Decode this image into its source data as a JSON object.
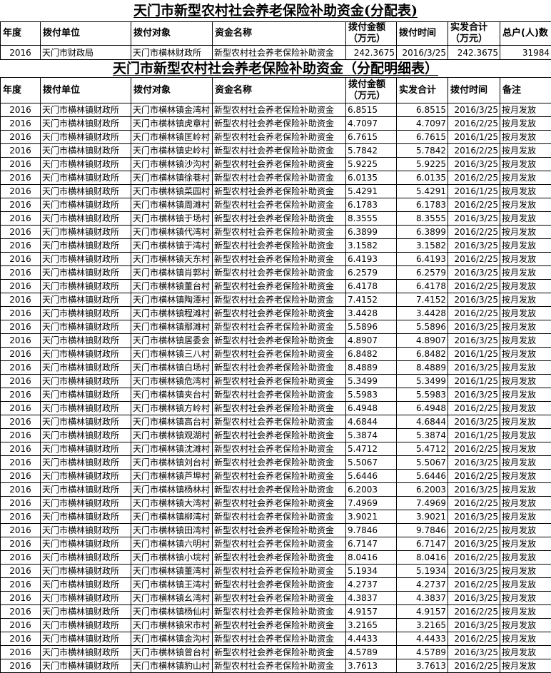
{
  "summary": {
    "title": "天门市新型农村社会养老保险补助资金(分配表)",
    "headers": [
      "年度",
      "拨付单位",
      "拨付对象",
      "资金名称",
      "拨付金额（万元）",
      "拨付时间",
      "实发合计（万元）",
      "总户(人)数"
    ],
    "row": [
      "2016",
      "天门市财政局",
      "天门市横林财政所",
      "新型农村社会养老保险补助资金",
      "242.3675",
      "2016/3/25",
      "242.3675",
      "31984"
    ]
  },
  "detail": {
    "title": "天门市新型农村社会养老保险补助资金（分配明细表）",
    "headers": [
      "年度",
      "拨付单位",
      "拨付对象",
      "资金名称",
      "拨付金额（万元）",
      "实发合计",
      "拨付时间",
      "备注"
    ],
    "year": "2016",
    "unit": "天门市横林镇财政所",
    "fund": "新型农村社会养老保险补助资金",
    "note": "按月发放",
    "rows": [
      [
        "天门市横林镇金湾村",
        "6.8515",
        "2016/3/25"
      ],
      [
        "天门市横林镇虎章村",
        "4.7097",
        "2016/2/25"
      ],
      [
        "天门市横林镇匡岭村",
        "6.7615",
        "2016/1/25"
      ],
      [
        "天门市横林镇史岭村",
        "5.7842",
        "2016/2/25"
      ],
      [
        "天门市横林镇沙沟村",
        "5.9225",
        "2016/3/25"
      ],
      [
        "天门市横林镇徐巷村",
        "6.0135",
        "2016/2/25"
      ],
      [
        "天门市横林镇菜园村",
        "5.4291",
        "2016/1/25"
      ],
      [
        "天门市横林镇周滩村",
        "6.1783",
        "2016/2/25"
      ],
      [
        "天门市横林镇于场村",
        "8.3555",
        "2016/3/25"
      ],
      [
        "天门市横林镇代湾村",
        "6.3899",
        "2016/2/25"
      ],
      [
        "天门市横林镇于湾村",
        "3.1582",
        "2016/3/25"
      ],
      [
        "天门市横林镇天东村",
        "6.4193",
        "2016/2/25"
      ],
      [
        "天门市横林镇肖郭村",
        "6.2579",
        "2016/3/25"
      ],
      [
        "天门市横林镇董台村",
        "6.4178",
        "2016/2/25"
      ],
      [
        "天门市横林镇陶潭村",
        "7.4152",
        "2016/3/25"
      ],
      [
        "天门市横林镇程滩村",
        "3.4428",
        "2016/2/25"
      ],
      [
        "天门市横林镇鄢滩村",
        "5.5896",
        "2016/3/25"
      ],
      [
        "天门市横林镇居委会",
        "4.8907",
        "2016/3/25"
      ],
      [
        "天门市横林镇三八村",
        "6.8482",
        "2016/1/25"
      ],
      [
        "天门市横林镇白场村",
        "8.4889",
        "2016/3/25"
      ],
      [
        "天门市横林镇危湾村",
        "5.3499",
        "2016/1/25"
      ],
      [
        "天门市横林镇夹台村",
        "5.5983",
        "2016/3/25"
      ],
      [
        "天门市横林镇方岭村",
        "6.4948",
        "2016/2/25"
      ],
      [
        "天门市横林镇高台村",
        "4.6844",
        "2016/3/25"
      ],
      [
        "天门市横林镇观湖村",
        "5.3874",
        "2016/1/25"
      ],
      [
        "天门市横林镇沈滩村",
        "5.4712",
        "2016/2/25"
      ],
      [
        "天门市横林镇刘台村",
        "5.5067",
        "2016/3/25"
      ],
      [
        "天门市横林镇芦埠村",
        "5.6446",
        "2016/2/25"
      ],
      [
        "天门市横林镇杨林村",
        "6.2003",
        "2016/3/25"
      ],
      [
        "天门市横林镇大湾村",
        "7.4969",
        "2016/2/25"
      ],
      [
        "天门市横林镇柳湾村",
        "3.9021",
        "2016/3/25"
      ],
      [
        "天门市横林镇田湾村",
        "9.7846",
        "2016/2/25"
      ],
      [
        "天门市横林镇六明村",
        "6.7147",
        "2016/3/25"
      ],
      [
        "天门市横林镇小垸村",
        "8.0416",
        "2016/2/25"
      ],
      [
        "天门市横林镇董湾村",
        "5.1934",
        "2016/3/25"
      ],
      [
        "天门市横林镇王湾村",
        "4.2737",
        "2016/2/25"
      ],
      [
        "天门市横林镇幺湾村",
        "4.3837",
        "2016/3/25"
      ],
      [
        "天门市横林镇杨仙村",
        "4.9157",
        "2016/2/25"
      ],
      [
        "天门市横林镇宋市村",
        "3.2165",
        "2016/3/25"
      ],
      [
        "天门市横林镇金沟村",
        "4.4433",
        "2016/2/25"
      ],
      [
        "天门市横林镇曾台村",
        "4.5789",
        "2016/3/25"
      ],
      [
        "天门市横林镇豹山村",
        "3.7613",
        "2016/2/25"
      ]
    ]
  }
}
